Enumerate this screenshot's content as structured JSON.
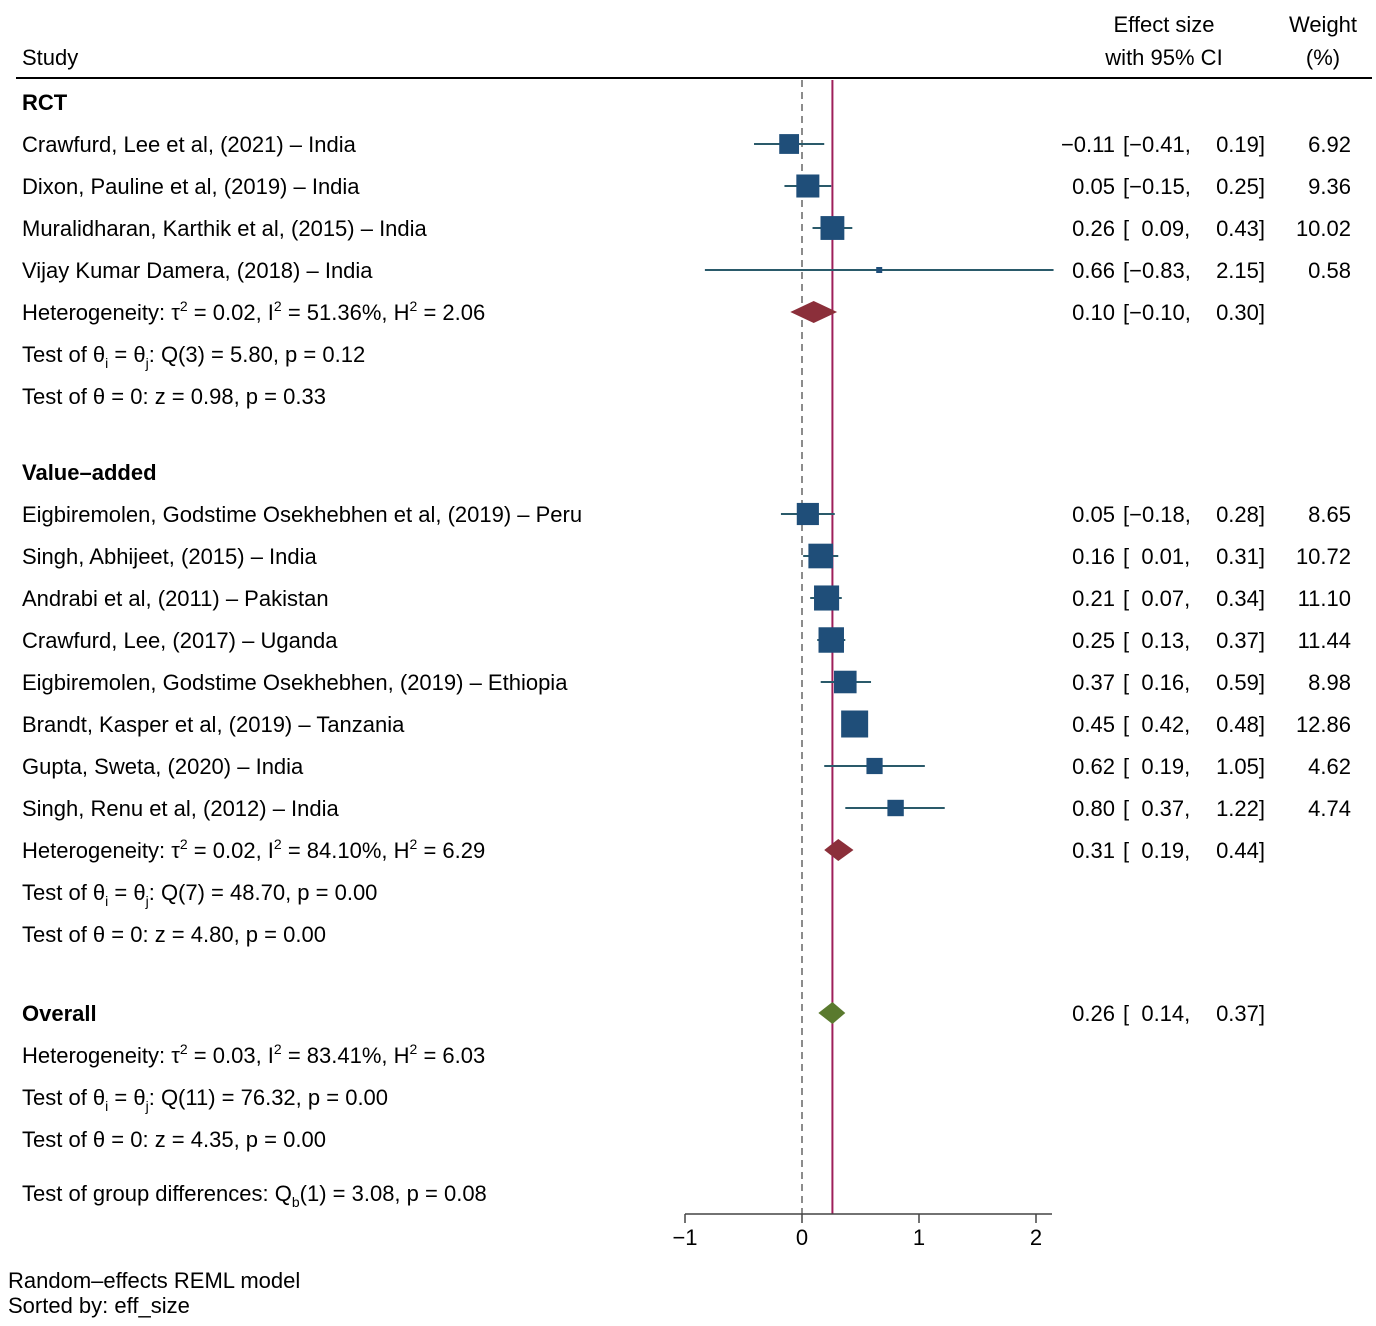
{
  "header": {
    "study": "Study",
    "effect_line1": "Effect size",
    "effect_line2": "with 95% CI",
    "weight_line1": "Weight",
    "weight_line2": "(%)"
  },
  "footer": {
    "model": "Random–effects REML model",
    "sorted": "Sorted by: eff_size"
  },
  "colors": {
    "marker": "#1f4e79",
    "subgroup_diamond": "#8b2f3a",
    "overall_diamond": "#5a7a2e",
    "overall_line": "#9e1f5a",
    "null_line": "#666666"
  },
  "chart_data": {
    "type": "forest",
    "xlim": [
      -1,
      2
    ],
    "xticks": [
      -1,
      0,
      1,
      2
    ],
    "xtick_labels": [
      "−1",
      "0",
      "1",
      "2"
    ],
    "null_line": 0,
    "overall_line": 0.26,
    "groups": [
      {
        "name": "RCT",
        "studies": [
          {
            "label": "Crawfurd, Lee et al, (2021) – India",
            "es": -0.11,
            "lo": -0.41,
            "hi": 0.19,
            "es_text": "−0.11",
            "lo_text": "[−0.41,",
            "hi_text": "0.19]",
            "weight": 6.92,
            "weight_text": "6.92"
          },
          {
            "label": "Dixon, Pauline et al, (2019) – India",
            "es": 0.05,
            "lo": -0.15,
            "hi": 0.25,
            "es_text": "0.05",
            "lo_text": "[−0.15,",
            "hi_text": "0.25]",
            "weight": 9.36,
            "weight_text": "9.36"
          },
          {
            "label": "Muralidharan, Karthik et al, (2015) – India",
            "es": 0.26,
            "lo": 0.09,
            "hi": 0.43,
            "es_text": "0.26",
            "lo_text": "[  0.09,",
            "hi_text": "0.43]",
            "weight": 10.02,
            "weight_text": "10.02"
          },
          {
            "label": "Vijay Kumar Damera, (2018) – India",
            "es": 0.66,
            "lo": -0.83,
            "hi": 2.15,
            "es_text": "0.66",
            "lo_text": "[−0.83,",
            "hi_text": "2.15]",
            "weight": 0.58,
            "weight_text": "0.58"
          }
        ],
        "summary": {
          "es": 0.1,
          "lo": -0.1,
          "hi": 0.3,
          "es_text": "0.10",
          "lo_text": "[−0.10,",
          "hi_text": "0.30]"
        },
        "heterogeneity": {
          "prefix": "Heterogeneity: τ",
          "t2": "= 0.02, I",
          "i2": "= 51.36%, H",
          "h2": "= 2.06"
        },
        "test_equal": {
          "prefix": "Test of θ",
          "mid": " = θ",
          "rest": ": Q(3) = 5.80, p = 0.12"
        },
        "test_zero": "Test of θ = 0: z = 0.98, p = 0.33"
      },
      {
        "name": "Value–added",
        "studies": [
          {
            "label": "Eigbiremolen, Godstime Osekhebhen et al, (2019) – Peru",
            "es": 0.05,
            "lo": -0.18,
            "hi": 0.28,
            "es_text": "0.05",
            "lo_text": "[−0.18,",
            "hi_text": "0.28]",
            "weight": 8.65,
            "weight_text": "8.65"
          },
          {
            "label": "Singh, Abhijeet, (2015) – India",
            "es": 0.16,
            "lo": 0.01,
            "hi": 0.31,
            "es_text": "0.16",
            "lo_text": "[  0.01,",
            "hi_text": "0.31]",
            "weight": 10.72,
            "weight_text": "10.72"
          },
          {
            "label": "Andrabi et al, (2011) – Pakistan",
            "es": 0.21,
            "lo": 0.07,
            "hi": 0.34,
            "es_text": "0.21",
            "lo_text": "[  0.07,",
            "hi_text": "0.34]",
            "weight": 11.1,
            "weight_text": "11.10"
          },
          {
            "label": "Crawfurd, Lee, (2017) – Uganda",
            "es": 0.25,
            "lo": 0.13,
            "hi": 0.37,
            "es_text": "0.25",
            "lo_text": "[  0.13,",
            "hi_text": "0.37]",
            "weight": 11.44,
            "weight_text": "11.44"
          },
          {
            "label": "Eigbiremolen, Godstime Osekhebhen, (2019) – Ethiopia",
            "es": 0.37,
            "lo": 0.16,
            "hi": 0.59,
            "es_text": "0.37",
            "lo_text": "[  0.16,",
            "hi_text": "0.59]",
            "weight": 8.98,
            "weight_text": "8.98"
          },
          {
            "label": "Brandt, Kasper et al, (2019) – Tanzania",
            "es": 0.45,
            "lo": 0.42,
            "hi": 0.48,
            "es_text": "0.45",
            "lo_text": "[  0.42,",
            "hi_text": "0.48]",
            "weight": 12.86,
            "weight_text": "12.86"
          },
          {
            "label": "Gupta, Sweta, (2020) – India",
            "es": 0.62,
            "lo": 0.19,
            "hi": 1.05,
            "es_text": "0.62",
            "lo_text": "[  0.19,",
            "hi_text": "1.05]",
            "weight": 4.62,
            "weight_text": "4.62"
          },
          {
            "label": "Singh, Renu et al, (2012) – India",
            "es": 0.8,
            "lo": 0.37,
            "hi": 1.22,
            "es_text": "0.80",
            "lo_text": "[  0.37,",
            "hi_text": "1.22]",
            "weight": 4.74,
            "weight_text": "4.74"
          }
        ],
        "summary": {
          "es": 0.31,
          "lo": 0.19,
          "hi": 0.44,
          "es_text": "0.31",
          "lo_text": "[  0.19,",
          "hi_text": "0.44]"
        },
        "heterogeneity": {
          "prefix": "Heterogeneity: τ",
          "t2": "= 0.02, I",
          "i2": "= 84.10%, H",
          "h2": "= 6.29"
        },
        "test_equal": {
          "prefix": "Test of θ",
          "mid": " = θ",
          "rest": ": Q(7) = 48.70, p = 0.00"
        },
        "test_zero": "Test of θ = 0: z = 4.80, p = 0.00"
      }
    ],
    "overall": {
      "name": "Overall",
      "es": 0.26,
      "lo": 0.14,
      "hi": 0.37,
      "es_text": "0.26",
      "lo_text": "[  0.14,",
      "hi_text": "0.37]",
      "heterogeneity": {
        "prefix": "Heterogeneity: τ",
        "t2": "= 0.03, I",
        "i2": "= 83.41%, H",
        "h2": "= 6.03"
      },
      "test_equal": {
        "prefix": "Test of θ",
        "mid": " = θ",
        "rest": ": Q(11) = 76.32, p = 0.00"
      },
      "test_zero": "Test of θ = 0: z = 4.35, p = 0.00"
    },
    "group_test": {
      "prefix": "Test of group differences: Q",
      "sub": "b",
      "rest": "(1) = 3.08, p = 0.08"
    }
  }
}
